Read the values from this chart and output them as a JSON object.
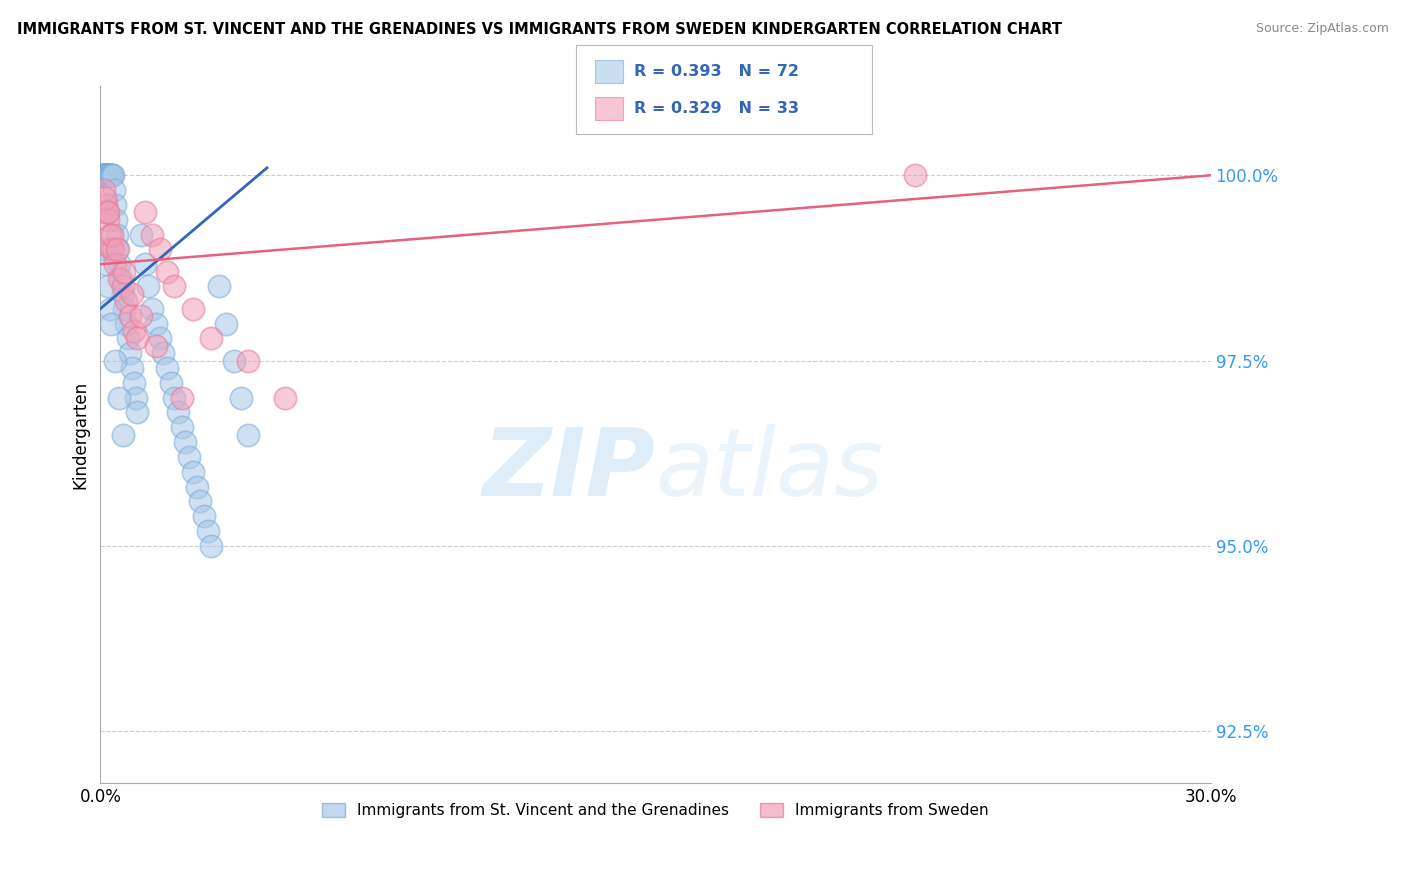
{
  "title": "IMMIGRANTS FROM ST. VINCENT AND THE GRENADINES VS IMMIGRANTS FROM SWEDEN KINDERGARTEN CORRELATION CHART",
  "source": "Source: ZipAtlas.com",
  "ylabel": "Kindergarten",
  "xlim": [
    0.0,
    30.0
  ],
  "ylim": [
    91.8,
    101.2
  ],
  "yticks": [
    92.5,
    95.0,
    97.5,
    100.0
  ],
  "ytick_labels": [
    "92.5%",
    "95.0%",
    "97.5%",
    "100.0%"
  ],
  "xticks": [
    0.0,
    30.0
  ],
  "xtick_labels": [
    "0.0%",
    "30.0%"
  ],
  "blue_color": "#a8c8e8",
  "pink_color": "#f0a0b8",
  "blue_edge_color": "#7aabda",
  "pink_edge_color": "#e87898",
  "blue_line_color": "#3366bb",
  "pink_line_color": "#e86080",
  "legend_blue_label": "Immigrants from St. Vincent and the Grenadines",
  "legend_pink_label": "Immigrants from Sweden",
  "r_blue": "R = 0.393",
  "n_blue": "N = 72",
  "r_pink": "R = 0.329",
  "n_pink": "N = 33",
  "stat_color": "#3366bb",
  "watermark_zip": "ZIP",
  "watermark_atlas": "atlas",
  "blue_x": [
    0.05,
    0.07,
    0.08,
    0.09,
    0.1,
    0.11,
    0.12,
    0.13,
    0.14,
    0.15,
    0.16,
    0.17,
    0.18,
    0.19,
    0.2,
    0.22,
    0.24,
    0.25,
    0.28,
    0.3,
    0.32,
    0.35,
    0.38,
    0.4,
    0.42,
    0.45,
    0.48,
    0.5,
    0.55,
    0.6,
    0.65,
    0.7,
    0.75,
    0.8,
    0.85,
    0.9,
    0.95,
    1.0,
    1.1,
    1.2,
    1.3,
    1.4,
    1.5,
    1.6,
    1.7,
    1.8,
    1.9,
    2.0,
    2.1,
    2.2,
    2.3,
    2.4,
    2.5,
    2.6,
    2.7,
    2.8,
    2.9,
    3.0,
    3.2,
    3.4,
    3.6,
    3.8,
    4.0,
    0.06,
    0.1,
    0.15,
    0.2,
    0.25,
    0.3,
    0.4,
    0.5,
    0.6
  ],
  "blue_y": [
    100.0,
    100.0,
    100.0,
    100.0,
    100.0,
    100.0,
    100.0,
    100.0,
    100.0,
    100.0,
    100.0,
    100.0,
    100.0,
    100.0,
    100.0,
    100.0,
    100.0,
    100.0,
    100.0,
    100.0,
    100.0,
    100.0,
    99.8,
    99.6,
    99.4,
    99.2,
    99.0,
    98.8,
    98.6,
    98.4,
    98.2,
    98.0,
    97.8,
    97.6,
    97.4,
    97.2,
    97.0,
    96.8,
    99.2,
    98.8,
    98.5,
    98.2,
    98.0,
    97.8,
    97.6,
    97.4,
    97.2,
    97.0,
    96.8,
    96.6,
    96.4,
    96.2,
    96.0,
    95.8,
    95.6,
    95.4,
    95.2,
    95.0,
    98.5,
    98.0,
    97.5,
    97.0,
    96.5,
    99.5,
    99.0,
    98.8,
    98.5,
    98.2,
    98.0,
    97.5,
    97.0,
    96.5
  ],
  "pink_x": [
    0.1,
    0.15,
    0.18,
    0.2,
    0.25,
    0.3,
    0.35,
    0.4,
    0.5,
    0.6,
    0.7,
    0.8,
    0.9,
    1.0,
    1.2,
    1.4,
    1.6,
    1.8,
    2.0,
    2.5,
    3.0,
    4.0,
    5.0,
    22.0,
    0.12,
    0.22,
    0.32,
    0.45,
    0.65,
    0.85,
    1.1,
    1.5,
    2.2
  ],
  "pink_y": [
    99.8,
    99.6,
    99.5,
    99.4,
    99.2,
    99.0,
    99.0,
    98.8,
    98.6,
    98.5,
    98.3,
    98.1,
    97.9,
    97.8,
    99.5,
    99.2,
    99.0,
    98.7,
    98.5,
    98.2,
    97.8,
    97.5,
    97.0,
    100.0,
    99.7,
    99.5,
    99.2,
    99.0,
    98.7,
    98.4,
    98.1,
    97.7,
    97.0
  ],
  "blue_trend_x": [
    0.0,
    4.5
  ],
  "blue_trend_y": [
    98.2,
    100.1
  ],
  "pink_trend_x": [
    0.0,
    30.0
  ],
  "pink_trend_y": [
    98.8,
    100.0
  ]
}
